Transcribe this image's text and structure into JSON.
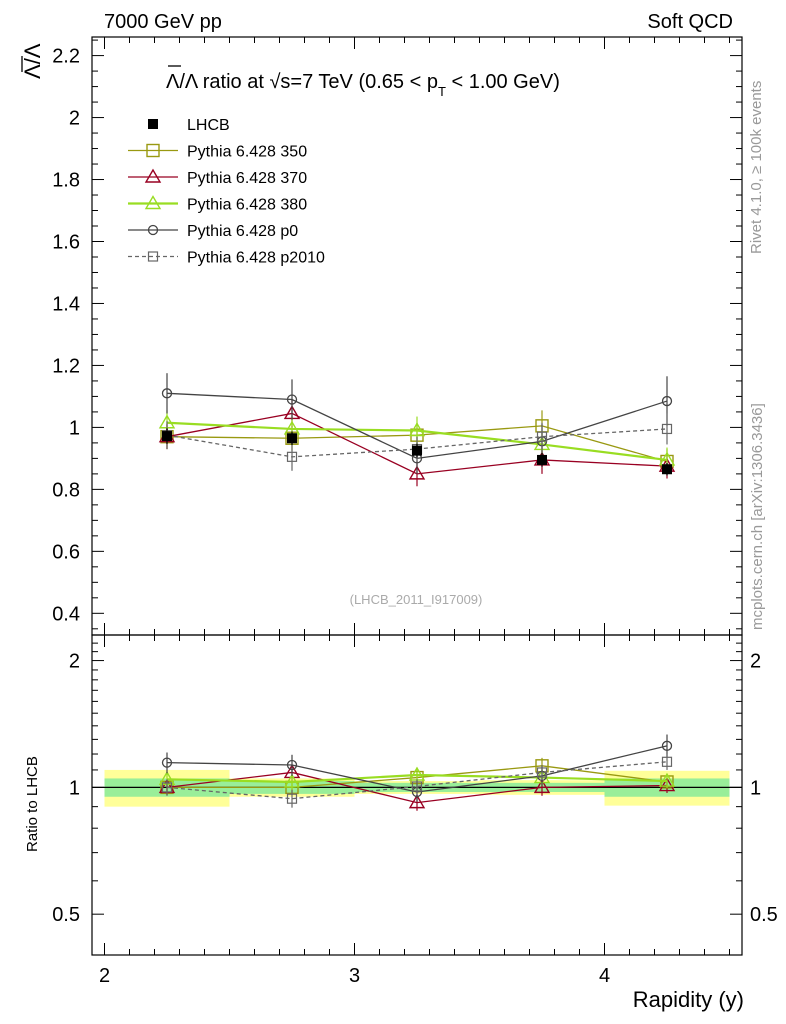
{
  "header": {
    "left": "7000 GeV pp",
    "right": "Soft QCD"
  },
  "side": {
    "top": "Rivet 4.1.0, ≥ 100k events",
    "bottom": "mcplots.cern.ch [arXiv:1306.3436]"
  },
  "watermark": "(LHCB_2011_I917009)",
  "chart_data": [
    {
      "type": "line",
      "title": "Λ̄/Λ ratio at √s=7 TeV (0.65 < pT < 1.00 GeV)",
      "title_parts": {
        "main": "Λ/Λ ratio at ",
        "sqrt": "√s",
        "mid": "=7 TeV (0.65 < p",
        "sub": "T",
        "end": " < 1.00 GeV)"
      },
      "ylabel": "Λ/Λ",
      "xlabel": "Rapidity (y)",
      "xlim": [
        1.95,
        4.55
      ],
      "ylim": [
        0.33,
        2.26
      ],
      "xticks": [
        2,
        3,
        4
      ],
      "yticks": [
        0.4,
        0.6,
        0.8,
        1,
        1.2,
        1.4,
        1.6,
        1.8,
        2,
        2.2
      ],
      "ytick_labels": [
        "0.4",
        "0.6",
        "0.8",
        "1",
        "1.2",
        "1.4",
        "1.6",
        "1.8",
        "2",
        "2.2"
      ],
      "x": [
        2.25,
        2.75,
        3.25,
        3.75,
        4.25
      ],
      "bin_edges": [
        2.0,
        2.5,
        3.0,
        3.5,
        4.0,
        4.5
      ],
      "data": {
        "name": "LHCB",
        "values": [
          0.972,
          0.965,
          0.925,
          0.895,
          0.865
        ],
        "errors": [
          0.025,
          0.022,
          0.022,
          0.022,
          0.02
        ]
      },
      "series": [
        {
          "name": "Pythia 6.428 350",
          "color": "#999911",
          "marker": "square-open",
          "dash": "",
          "values": [
            0.97,
            0.965,
            0.975,
            1.005,
            0.89
          ],
          "errors": [
            0.04,
            0.04,
            0.04,
            0.05,
            0.04
          ]
        },
        {
          "name": "Pythia 6.428 370",
          "color": "#990022",
          "marker": "triangle-open",
          "dash": "",
          "values": [
            0.97,
            1.045,
            0.85,
            0.895,
            0.875
          ],
          "errors": [
            0.04,
            0.045,
            0.04,
            0.045,
            0.04
          ]
        },
        {
          "name": "Pythia 6.428 380",
          "color": "#99dd22",
          "marker": "triangle-open",
          "dash": "",
          "values": [
            1.015,
            0.995,
            0.99,
            0.945,
            0.895
          ],
          "errors": [
            0.04,
            0.04,
            0.045,
            0.045,
            0.04
          ]
        },
        {
          "name": "Pythia 6.428 p0",
          "color": "#444444",
          "marker": "circle-open",
          "dash": "",
          "values": [
            1.11,
            1.09,
            0.9,
            0.955,
            1.085
          ],
          "errors": [
            0.065,
            0.065,
            0.05,
            0.055,
            0.08
          ]
        },
        {
          "name": "Pythia 6.428 p2010",
          "color": "#666666",
          "marker": "square-open-small",
          "dash": "4,3",
          "values": [
            0.975,
            0.905,
            0.93,
            0.97,
            0.995
          ],
          "errors": [
            0.045,
            0.045,
            0.04,
            0.045,
            0.05
          ]
        }
      ],
      "legend": "top-left"
    },
    {
      "type": "line",
      "ylabel": "Ratio to LHCB",
      "xlabel": "Rapidity (y)",
      "scale": "log",
      "ylim": [
        0.4,
        2.3
      ],
      "yticks": [
        0.5,
        1,
        2
      ],
      "ytick_labels": [
        "0.5",
        "1",
        "2"
      ],
      "x": [
        2.25,
        2.75,
        3.25,
        3.75,
        4.25
      ],
      "bands": {
        "stat_half_widths": [
          0.05,
          0.035,
          0.025,
          0.025,
          0.05
        ],
        "total_half_widths": [
          0.1,
          0.05,
          0.035,
          0.04,
          0.095
        ]
      },
      "series": [
        {
          "name": "Pythia 6.428 350",
          "values": [
            1.0,
            1.0,
            1.055,
            1.125,
            1.03
          ],
          "errors": [
            0.04,
            0.04,
            0.04,
            0.05,
            0.04
          ]
        },
        {
          "name": "Pythia 6.428 370",
          "values": [
            1.0,
            1.085,
            0.92,
            1.0,
            1.01
          ],
          "errors": [
            0.04,
            0.045,
            0.04,
            0.045,
            0.04
          ]
        },
        {
          "name": "Pythia 6.428 380",
          "values": [
            1.045,
            1.03,
            1.07,
            1.055,
            1.035
          ],
          "errors": [
            0.04,
            0.04,
            0.045,
            0.045,
            0.04
          ]
        },
        {
          "name": "Pythia 6.428 p0",
          "values": [
            1.145,
            1.13,
            0.975,
            1.065,
            1.255
          ],
          "errors": [
            0.065,
            0.065,
            0.05,
            0.055,
            0.08
          ]
        },
        {
          "name": "Pythia 6.428 p2010",
          "values": [
            1.0,
            0.94,
            1.005,
            1.085,
            1.15
          ],
          "errors": [
            0.045,
            0.045,
            0.04,
            0.045,
            0.05
          ]
        }
      ]
    }
  ]
}
